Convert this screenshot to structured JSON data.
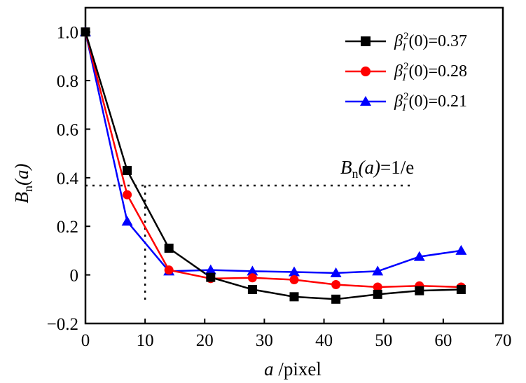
{
  "chart_data": {
    "type": "line",
    "xlabel": {
      "symbol": "a",
      "rest": " /pixel"
    },
    "ylabel": {
      "base": "B",
      "sub": "n",
      "arg": "(a)"
    },
    "xlim": [
      0,
      70
    ],
    "ylim": [
      -0.2,
      1.1
    ],
    "xticks": [
      0,
      10,
      20,
      30,
      40,
      50,
      60,
      70
    ],
    "xtick_labels": [
      "0",
      "10",
      "20",
      "30",
      "40",
      "50",
      "60",
      "70"
    ],
    "yticks": [
      -0.2,
      0,
      0.2,
      0.4,
      0.6,
      0.8,
      1.0
    ],
    "ytick_labels": [
      "−0.2",
      "0",
      "0.2",
      "0.4",
      "0.6",
      "0.8",
      "1.0"
    ],
    "x": [
      0,
      7,
      14,
      21,
      28,
      35,
      42,
      49,
      56,
      63
    ],
    "series": [
      {
        "name": "β_I²(0)=0.37",
        "legend_value": "(0)=0.37",
        "color": "#000000",
        "marker": "square",
        "values": [
          1.0,
          0.43,
          0.11,
          -0.01,
          -0.06,
          -0.09,
          -0.1,
          -0.08,
          -0.065,
          -0.06
        ]
      },
      {
        "name": "β_I²(0)=0.28",
        "legend_value": "(0)=0.28",
        "color": "#ff0000",
        "marker": "circle",
        "values": [
          1.0,
          0.33,
          0.02,
          -0.015,
          -0.012,
          -0.02,
          -0.04,
          -0.05,
          -0.045,
          -0.05
        ]
      },
      {
        "name": "β_I²(0)=0.21",
        "legend_value": "(0)=0.21",
        "color": "#0000ff",
        "marker": "triangle",
        "values": [
          1.0,
          0.22,
          0.015,
          0.02,
          0.015,
          0.012,
          0.008,
          0.015,
          0.075,
          0.1
        ]
      }
    ],
    "legend_symbol": {
      "base": "β",
      "sup": "2",
      "sub": "I"
    },
    "reference": {
      "y": 0.3679,
      "x_end": 55,
      "x_cross": 10,
      "label": {
        "base": "B",
        "sub": "n",
        "arg": "(a)",
        "rest": "=1/e"
      }
    },
    "legend_position": "top-right"
  }
}
